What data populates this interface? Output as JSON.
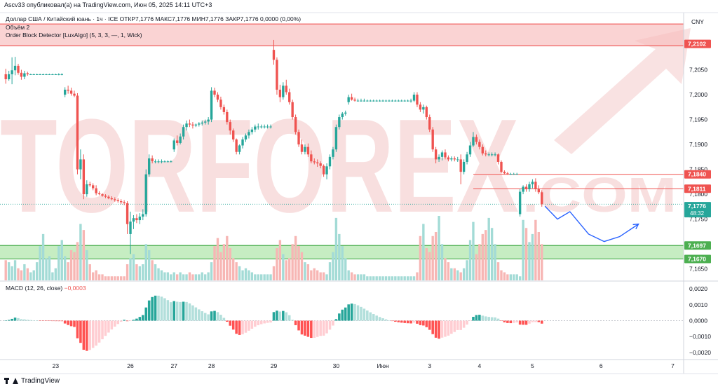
{
  "header": {
    "caption": "Ascv33 опубликовал(а) на TradingView.com, Июн 05, 2025 14:11 UTC+3",
    "symbol_line": "Доллар США / Китайский юань · 1ч · ICE  ОТКР7,1776  МАКС7,1776  МИН7,1776  ЗАКР7,1776  0,0000 (0,00%)",
    "volume_label": "Объём  2",
    "indicator_label": "Order Block Detector [LuxAlgo] (5, 3, 3, —, 1, Wick)",
    "macd_label": "MACD (12, 26, close)",
    "macd_value": "−0,0003",
    "currency": "CNY"
  },
  "footer": {
    "brand": "TradingView"
  },
  "watermark": {
    "text": "TORFOREX",
    "suffix": ".COM"
  },
  "colors": {
    "up": "#26a69a",
    "down": "#ef5350",
    "vol_up": "#a3dbd6",
    "vol_down": "#f7b6b4",
    "zone_red": "#f8bcbc",
    "zone_green": "#a7e3a2",
    "forecast": "#2962ff",
    "last_price": "#26a69a"
  },
  "chart_data": {
    "type": "candlestick",
    "timeframe": "1h",
    "price_axis": {
      "range": [
        7.1627,
        7.2162
      ],
      "ticks": [
        "7,2050",
        "7,2000",
        "7,1950",
        "7,1900",
        "7,1850",
        "7,1800",
        "7,1750",
        "7,1650"
      ],
      "tick_values": [
        7.205,
        7.2,
        7.195,
        7.19,
        7.185,
        7.18,
        7.175,
        7.165
      ]
    },
    "price_labels": [
      {
        "value": 7.2102,
        "text": "7,2102",
        "kind": "resistance"
      },
      {
        "value": 7.184,
        "text": "7,1840",
        "kind": "resistance"
      },
      {
        "value": 7.1811,
        "text": "7,1811",
        "kind": "resistance"
      },
      {
        "value": 7.1776,
        "text": "7,1776",
        "kind": "last",
        "countdown": "48:32"
      },
      {
        "value": 7.1697,
        "text": "7,1697",
        "kind": "support"
      },
      {
        "value": 7.167,
        "text": "7,1670",
        "kind": "support"
      }
    ],
    "zones": [
      {
        "from": 7.2098,
        "to": 7.2142,
        "kind": "bearish"
      },
      {
        "from": 7.167,
        "to": 7.1697,
        "kind": "bullish"
      }
    ],
    "levels": [
      7.184,
      7.1811
    ],
    "x_labels": [
      "23",
      "26",
      "27",
      "28",
      "29",
      "30",
      "Июн",
      "3",
      "4",
      "5",
      "6",
      "7"
    ],
    "x_label_index": [
      16,
      40,
      54,
      66,
      86,
      106,
      121,
      136,
      152,
      169,
      191,
      214
    ],
    "candles": [
      [
        7.2041,
        7.2052,
        7.2022,
        7.2031
      ],
      [
        7.2031,
        7.2048,
        7.2028,
        7.2041
      ],
      [
        7.2041,
        7.2075,
        7.2021,
        7.2049
      ],
      [
        7.2049,
        7.2076,
        7.2039,
        7.2058
      ],
      [
        7.2058,
        7.2062,
        7.204,
        7.2044
      ],
      [
        7.2044,
        7.205,
        7.203,
        7.2036
      ],
      [
        7.2036,
        7.2048,
        7.2031,
        7.2043
      ],
      [
        7.2043,
        7.2046,
        7.2038,
        7.2041
      ],
      [
        7.2041,
        7.2042,
        7.204,
        7.2041
      ],
      [
        7.2041,
        7.2042,
        7.204,
        7.2041
      ],
      [
        7.2041,
        7.2042,
        7.204,
        7.2041
      ],
      [
        7.2041,
        7.2042,
        7.204,
        7.2041
      ],
      [
        7.2041,
        7.2042,
        7.204,
        7.2041
      ],
      [
        7.2041,
        7.2042,
        7.204,
        7.2041
      ],
      [
        7.2041,
        7.2042,
        7.204,
        7.2041
      ],
      [
        7.2041,
        7.2042,
        7.204,
        7.2041
      ],
      [
        7.2041,
        7.2042,
        7.204,
        7.2041
      ],
      [
        7.2041,
        7.2043,
        7.2039,
        7.2041
      ],
      [
        7.2041,
        7.2043,
        7.2039,
        7.2041
      ],
      [
        7.2,
        7.2015,
        7.1995,
        7.201
      ],
      [
        7.201,
        7.2018,
        7.2002,
        7.2008
      ],
      [
        7.2008,
        7.2014,
        7.1998,
        7.2002
      ],
      [
        7.2002,
        7.2008,
        7.1995,
        7.1998
      ],
      [
        7.1998,
        7.2003,
        7.184,
        7.185
      ],
      [
        7.185,
        7.189,
        7.183,
        7.187
      ],
      [
        7.187,
        7.188,
        7.179,
        7.18
      ],
      [
        7.18,
        7.1828,
        7.1795,
        7.182
      ],
      [
        7.182,
        7.1825,
        7.1815,
        7.1818
      ],
      [
        7.1818,
        7.1822,
        7.1808,
        7.1812
      ],
      [
        7.1812,
        7.1818,
        7.1798,
        7.1802
      ],
      [
        7.1802,
        7.1806,
        7.1798,
        7.18
      ],
      [
        7.18,
        7.1802,
        7.1795,
        7.1797
      ],
      [
        7.1797,
        7.18,
        7.1792,
        7.1795
      ],
      [
        7.1795,
        7.1798,
        7.179,
        7.1792
      ],
      [
        7.1792,
        7.1796,
        7.1788,
        7.179
      ],
      [
        7.179,
        7.1794,
        7.1785,
        7.1788
      ],
      [
        7.1788,
        7.1792,
        7.1783,
        7.1786
      ],
      [
        7.1786,
        7.179,
        7.178,
        7.1784
      ],
      [
        7.1784,
        7.1788,
        7.1778,
        7.1782
      ],
      [
        7.1782,
        7.1786,
        7.172,
        7.174
      ],
      [
        7.172,
        7.1765,
        7.168,
        7.1745
      ],
      [
        7.1745,
        7.1758,
        7.173,
        7.1752
      ],
      [
        7.1752,
        7.176,
        7.1742,
        7.1748
      ],
      [
        7.1748,
        7.1762,
        7.174,
        7.1755
      ],
      [
        7.1755,
        7.177,
        7.1748,
        7.176
      ],
      [
        7.176,
        7.185,
        7.1755,
        7.184
      ],
      [
        7.184,
        7.188,
        7.1835,
        7.1872
      ],
      [
        7.1872,
        7.1878,
        7.1862,
        7.1866
      ],
      [
        7.1866,
        7.187,
        7.1862,
        7.1866
      ],
      [
        7.1866,
        7.187,
        7.1862,
        7.1866
      ],
      [
        7.1866,
        7.187,
        7.1862,
        7.1866
      ],
      [
        7.1866,
        7.1868,
        7.1864,
        7.1866
      ],
      [
        7.1866,
        7.1868,
        7.1864,
        7.1866
      ],
      [
        7.1866,
        7.1868,
        7.1864,
        7.1866
      ],
      [
        7.189,
        7.1912,
        7.1885,
        7.1908
      ],
      [
        7.1908,
        7.1918,
        7.1898,
        7.1903
      ],
      [
        7.1903,
        7.1922,
        7.19,
        7.1916
      ],
      [
        7.1916,
        7.194,
        7.191,
        7.1935
      ],
      [
        7.1935,
        7.1948,
        7.1928,
        7.1942
      ],
      [
        7.1942,
        7.195,
        7.1935,
        7.194
      ],
      [
        7.194,
        7.1945,
        7.1932,
        7.1938
      ],
      [
        7.1938,
        7.1942,
        7.1935,
        7.194
      ],
      [
        7.194,
        7.1945,
        7.1936,
        7.1942
      ],
      [
        7.1942,
        7.1948,
        7.1938,
        7.1944
      ],
      [
        7.1944,
        7.195,
        7.194,
        7.1946
      ],
      [
        7.1946,
        7.1955,
        7.194,
        7.195
      ],
      [
        7.195,
        7.2015,
        7.1945,
        7.2008
      ],
      [
        7.2008,
        7.2014,
        7.1995,
        7.2
      ],
      [
        7.2,
        7.2005,
        7.1985,
        7.199
      ],
      [
        7.199,
        7.1996,
        7.197,
        7.1975
      ],
      [
        7.1975,
        7.198,
        7.196,
        7.1965
      ],
      [
        7.1965,
        7.197,
        7.194,
        7.1945
      ],
      [
        7.1945,
        7.195,
        7.192,
        7.1928
      ],
      [
        7.1928,
        7.1932,
        7.1905,
        7.191
      ],
      [
        7.191,
        7.1912,
        7.188,
        7.1885
      ],
      [
        7.1885,
        7.19,
        7.188,
        7.1898
      ],
      [
        7.1898,
        7.1915,
        7.1892,
        7.191
      ],
      [
        7.191,
        7.1922,
        7.1905,
        7.1918
      ],
      [
        7.1918,
        7.193,
        7.1912,
        7.1925
      ],
      [
        7.1925,
        7.1935,
        7.192,
        7.193
      ],
      [
        7.193,
        7.194,
        7.1925,
        7.1936
      ],
      [
        7.1936,
        7.1942,
        7.193,
        7.1936
      ],
      [
        7.1936,
        7.194,
        7.1932,
        7.1936
      ],
      [
        7.1936,
        7.194,
        7.1932,
        7.1936
      ],
      [
        7.1936,
        7.194,
        7.1932,
        7.1936
      ],
      [
        7.1936,
        7.194,
        7.1932,
        7.1936
      ],
      [
        7.209,
        7.211,
        7.206,
        7.207
      ],
      [
        7.207,
        7.2075,
        7.2,
        7.201
      ],
      [
        7.201,
        7.202,
        7.1985,
        7.1995
      ],
      [
        7.1995,
        7.2025,
        7.199,
        7.2018
      ],
      [
        7.2018,
        7.203,
        7.2,
        7.2005
      ],
      [
        7.2005,
        7.2012,
        7.198,
        7.1985
      ],
      [
        7.1985,
        7.199,
        7.195,
        7.1955
      ],
      [
        7.1955,
        7.196,
        7.192,
        7.1925
      ],
      [
        7.1925,
        7.193,
        7.1895,
        7.19
      ],
      [
        7.19,
        7.191,
        7.188,
        7.1885
      ],
      [
        7.1885,
        7.19,
        7.188,
        7.1895
      ],
      [
        7.1895,
        7.1902,
        7.1875,
        7.188
      ],
      [
        7.188,
        7.1888,
        7.1862,
        7.1866
      ],
      [
        7.1866,
        7.1872,
        7.186,
        7.1864
      ],
      [
        7.1864,
        7.187,
        7.1855,
        7.1862
      ],
      [
        7.1862,
        7.1866,
        7.1852,
        7.1857
      ],
      [
        7.1857,
        7.186,
        7.1835,
        7.184
      ],
      [
        7.184,
        7.1862,
        7.183,
        7.1856
      ],
      [
        7.1856,
        7.188,
        7.185,
        7.1875
      ],
      [
        7.1875,
        7.1895,
        7.187,
        7.189
      ],
      [
        7.189,
        7.194,
        7.1885,
        7.1935
      ],
      [
        7.1935,
        7.196,
        7.193,
        7.1955
      ],
      [
        7.1955,
        7.1965,
        7.195,
        7.1962
      ],
      [
        7.1962,
        7.1968,
        7.1958,
        7.1964
      ],
      [
        7.1985,
        7.2,
        7.198,
        7.1995
      ],
      [
        7.1995,
        7.2002,
        7.1988,
        7.199
      ],
      [
        7.199,
        7.1994,
        7.1986,
        7.1988
      ],
      [
        7.1988,
        7.1992,
        7.1986,
        7.1988
      ],
      [
        7.1988,
        7.1992,
        7.1986,
        7.1988
      ],
      [
        7.1988,
        7.1992,
        7.1986,
        7.1988
      ],
      [
        7.1988,
        7.199,
        7.1986,
        7.1988
      ],
      [
        7.1988,
        7.199,
        7.1986,
        7.1988
      ],
      [
        7.1988,
        7.199,
        7.1986,
        7.1988
      ],
      [
        7.1988,
        7.199,
        7.1986,
        7.1988
      ],
      [
        7.1988,
        7.199,
        7.1986,
        7.1988
      ],
      [
        7.1988,
        7.199,
        7.1986,
        7.1988
      ],
      [
        7.1988,
        7.199,
        7.1986,
        7.1988
      ],
      [
        7.1988,
        7.199,
        7.1986,
        7.1988
      ],
      [
        7.1988,
        7.199,
        7.1986,
        7.1988
      ],
      [
        7.1988,
        7.199,
        7.1986,
        7.1988
      ],
      [
        7.1988,
        7.199,
        7.1986,
        7.1988
      ],
      [
        7.1988,
        7.199,
        7.1986,
        7.1988
      ],
      [
        7.1988,
        7.199,
        7.1986,
        7.1988
      ],
      [
        7.1988,
        7.199,
        7.1986,
        7.1988
      ],
      [
        7.1988,
        7.1992,
        7.1984,
        7.1988
      ],
      [
        7.1988,
        7.2005,
        7.1985,
        7.2
      ],
      [
        7.2,
        7.2005,
        7.1975,
        7.198
      ],
      [
        7.198,
        7.1985,
        7.1965,
        7.197
      ],
      [
        7.197,
        7.198,
        7.1962,
        7.1975
      ],
      [
        7.1975,
        7.1978,
        7.195,
        7.1955
      ],
      [
        7.1955,
        7.196,
        7.1925,
        7.193
      ],
      [
        7.193,
        7.1935,
        7.1885,
        7.189
      ],
      [
        7.189,
        7.1895,
        7.1862,
        7.187
      ],
      [
        7.187,
        7.188,
        7.1865,
        7.1875
      ],
      [
        7.1875,
        7.1888,
        7.1868,
        7.1884
      ],
      [
        7.1884,
        7.189,
        7.187,
        7.1874
      ],
      [
        7.1874,
        7.1878,
        7.1866,
        7.187
      ],
      [
        7.187,
        7.1876,
        7.1866,
        7.1872
      ],
      [
        7.1872,
        7.1876,
        7.1866,
        7.187
      ],
      [
        7.187,
        7.1875,
        7.1865,
        7.187
      ],
      [
        7.187,
        7.188,
        7.182,
        7.1845
      ],
      [
        7.1845,
        7.187,
        7.184,
        7.1865
      ],
      [
        7.1865,
        7.1885,
        7.186,
        7.188
      ],
      [
        7.188,
        7.1905,
        7.1875,
        7.1898
      ],
      [
        7.1898,
        7.1925,
        7.1895,
        7.1915
      ],
      [
        7.1915,
        7.192,
        7.19,
        7.1905
      ],
      [
        7.1905,
        7.191,
        7.189,
        7.1895
      ],
      [
        7.1895,
        7.19,
        7.1878,
        7.1882
      ],
      [
        7.1882,
        7.1888,
        7.1876,
        7.188
      ],
      [
        7.188,
        7.1884,
        7.1876,
        7.188
      ],
      [
        7.188,
        7.1884,
        7.1876,
        7.188
      ],
      [
        7.188,
        7.1884,
        7.1876,
        7.188
      ],
      [
        7.188,
        7.1882,
        7.186,
        7.1865
      ],
      [
        7.1865,
        7.1868,
        7.1842,
        7.1845
      ],
      [
        7.1845,
        7.1848,
        7.184,
        7.1842
      ],
      [
        7.1842,
        7.1845,
        7.1839,
        7.1841
      ],
      [
        7.1841,
        7.1843,
        7.1839,
        7.1841
      ],
      [
        7.1841,
        7.1843,
        7.1839,
        7.1841
      ],
      [
        7.1841,
        7.1843,
        7.1839,
        7.1841
      ],
      [
        7.176,
        7.181,
        7.1755,
        7.1805
      ],
      [
        7.1805,
        7.1818,
        7.18,
        7.1815
      ],
      [
        7.1815,
        7.182,
        7.1805,
        7.181
      ],
      [
        7.181,
        7.1825,
        7.1805,
        7.182
      ],
      [
        7.182,
        7.183,
        7.1812,
        7.1825
      ],
      [
        7.1825,
        7.1832,
        7.1805,
        7.181
      ],
      [
        7.181,
        7.1818,
        7.18,
        7.1804
      ],
      [
        7.1804,
        7.1808,
        7.1775,
        7.178
      ]
    ],
    "volume": [
      1,
      0.9,
      0.7,
      1,
      0.6,
      0.5,
      0.8,
      0.6,
      0.4,
      0.5,
      0.9,
      1.7,
      2.3,
      1.1,
      1.2,
      0.4,
      0.6,
      1.7,
      2.0,
      1.2,
      0.9,
      1.5,
      1.4,
      1.9,
      2.8,
      2.5,
      1.5,
      0.8,
      0.4,
      0.5,
      0.3,
      0.3,
      0.2,
      0.2,
      0.2,
      0.2,
      0.2,
      0.2,
      0.2,
      0.8,
      1.1,
      1.3,
      0.8,
      0.7,
      0.8,
      1.8,
      1.5,
      1.0,
      0.8,
      0.6,
      0.5,
      0.4,
      0.4,
      0.3,
      0.4,
      0.3,
      0.4,
      0.3,
      0.3,
      0.4,
      0.3,
      0.3,
      0.3,
      0.4,
      0.3,
      0.4,
      0.9,
      1.7,
      2.1,
      1.4,
      1.8,
      2.2,
      1.6,
      1.1,
      0.9,
      0.7,
      0.5,
      0.6,
      0.5,
      0.4,
      0.3,
      0.3,
      0.3,
      0.3,
      0.3,
      0.3,
      0.7,
      1.6,
      2.0,
      1.3,
      1.0,
      1.1,
      1.8,
      2.2,
      1.7,
      1.4,
      0.9,
      0.8,
      0.5,
      0.6,
      0.5,
      0.4,
      0.4,
      0.3,
      0.9,
      1.4,
      3.1,
      2.3,
      1.7,
      1.1,
      0.5,
      0.4,
      0.3,
      0.3,
      0.3,
      0.3,
      0.2,
      0.2,
      0.2,
      0.2,
      0.2,
      0.2,
      0.2,
      0.2,
      0.2,
      0.2,
      0.2,
      0.2,
      0.2,
      0.2,
      0.2,
      0.2,
      0.4,
      2.2,
      2.8,
      1.6,
      1.4,
      2.2,
      2.4,
      3.2,
      1.8,
      1.1,
      0.9,
      0.6,
      0.6,
      0.5,
      0.4,
      0.6,
      1.0,
      2.0,
      2.9,
      1.3,
      1.8,
      2.3,
      2.5,
      3.1,
      2.6,
      1.8,
      0.9,
      0.5,
      0.4,
      0.3,
      0.3,
      0.3,
      0.3,
      0.2,
      3.0,
      2.6,
      1.9,
      2.3,
      3.0,
      2.4,
      1.8,
      0.8
    ],
    "macd_axis": {
      "range": [
        -0.0024,
        0.0024
      ],
      "ticks": [
        "0,0020",
        "0,0010",
        "0,0000",
        "−0,0010",
        "−0,0020"
      ],
      "tick_values": [
        0.002,
        0.001,
        0,
        -0.001,
        -0.002
      ]
    },
    "forecast_path": [
      [
        173,
        7.1776
      ],
      [
        177,
        7.175
      ],
      [
        181,
        7.1765
      ],
      [
        187,
        7.172
      ],
      [
        192,
        7.1705
      ],
      [
        197,
        7.1715
      ],
      [
        203,
        7.174
      ]
    ]
  }
}
